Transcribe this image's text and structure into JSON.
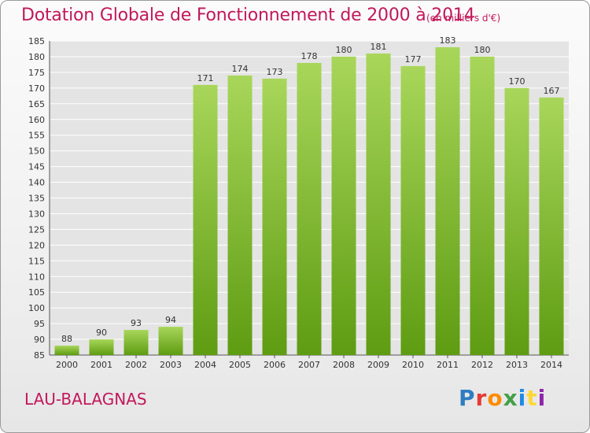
{
  "title": "Dotation Globale de Fonctionnement de 2000 à 2014",
  "unit_note": "(en milliers d'€)",
  "place": "LAU-BALAGNAS",
  "logo": {
    "text": "Proxiti",
    "colors": [
      "#2e7dc1",
      "#e53935",
      "#fb8c00",
      "#43a047",
      "#1e88e5",
      "#fdd835",
      "#8e24aa"
    ]
  },
  "colors": {
    "title": "#c2185b",
    "bar_top": "#a8d65a",
    "bar_bottom": "#5e9c12",
    "grid": "#ffffff",
    "plot_bg": "#e4e4e4"
  },
  "chart_data": {
    "type": "bar",
    "categories": [
      "2000",
      "2001",
      "2002",
      "2003",
      "2004",
      "2005",
      "2006",
      "2007",
      "2008",
      "2009",
      "2010",
      "2011",
      "2012",
      "2013",
      "2014"
    ],
    "values": [
      88,
      90,
      93,
      94,
      171,
      174,
      173,
      178,
      180,
      181,
      177,
      183,
      180,
      170,
      167
    ],
    "ylim": [
      85,
      185
    ],
    "yticks": [
      85,
      90,
      95,
      100,
      105,
      110,
      115,
      120,
      125,
      130,
      135,
      140,
      145,
      150,
      155,
      160,
      165,
      170,
      175,
      180,
      185
    ],
    "grid": true,
    "data_labels": true
  }
}
